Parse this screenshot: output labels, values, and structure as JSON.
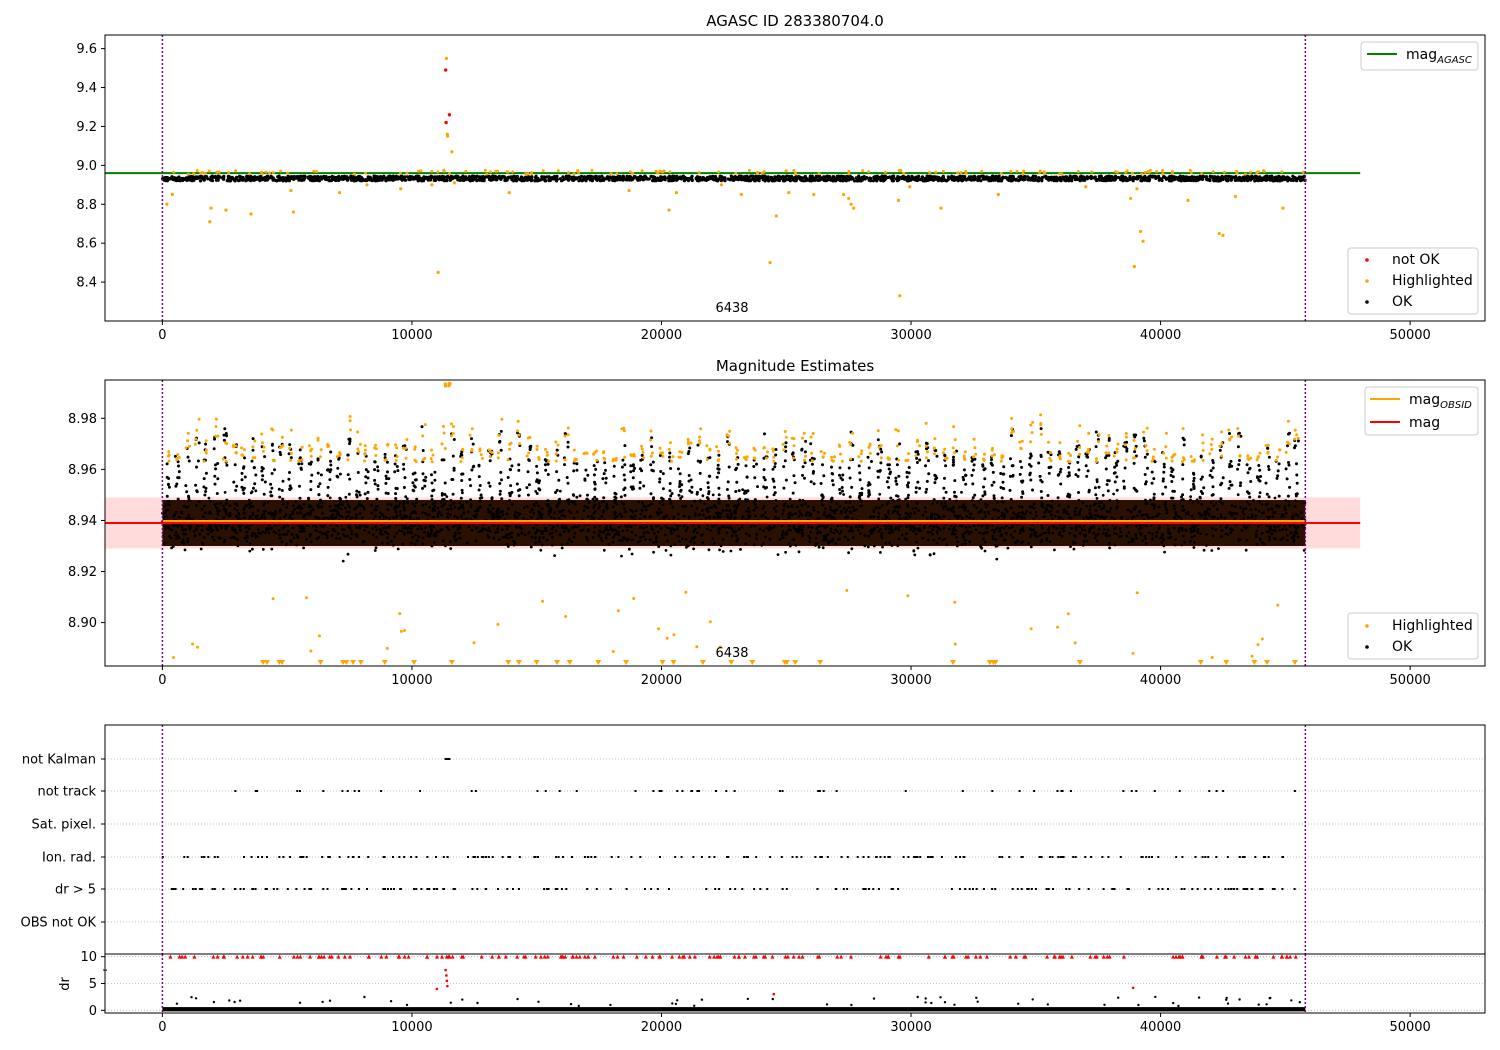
{
  "chart_data": [
    {
      "type": "scatter",
      "title": "AGASC ID 283380704.0",
      "xlim": [
        -2300,
        53000
      ],
      "ylim": [
        8.2,
        9.67
      ],
      "xticks": [
        "0",
        "10000",
        "20000",
        "30000",
        "40000",
        "50000"
      ],
      "yticks": [
        "8.4",
        "8.6",
        "8.8",
        "9.0",
        "9.2",
        "9.4",
        "9.6"
      ],
      "annotation": "6438",
      "vlines_x": [
        0,
        45800
      ],
      "hline": {
        "name": "mag",
        "name_sub": "AGASC",
        "y": 8.96,
        "color": "#008000"
      },
      "series": [
        {
          "name": "not OK",
          "color": "#ff0000",
          "points": [
            [
              11350,
              9.49
            ],
            [
              11370,
              9.22
            ],
            [
              11500,
              9.26
            ]
          ]
        },
        {
          "name": "Highlighted",
          "color": "#ffa500",
          "points": [
            [
              180,
              8.8
            ],
            [
              400,
              8.85
            ],
            [
              1900,
              8.71
            ],
            [
              1950,
              8.78
            ],
            [
              2550,
              8.77
            ],
            [
              3550,
              8.75
            ],
            [
              5250,
              8.76
            ],
            [
              5150,
              8.87
            ],
            [
              7100,
              8.86
            ],
            [
              8200,
              8.9
            ],
            [
              9550,
              8.88
            ],
            [
              10800,
              8.9
            ],
            [
              11050,
              8.45
            ],
            [
              11380,
              9.55
            ],
            [
              11420,
              9.16
            ],
            [
              11430,
              9.15
            ],
            [
              11600,
              9.07
            ],
            [
              11700,
              8.91
            ],
            [
              13900,
              8.86
            ],
            [
              18700,
              8.87
            ],
            [
              20300,
              8.77
            ],
            [
              20600,
              8.86
            ],
            [
              22400,
              8.9
            ],
            [
              23200,
              8.85
            ],
            [
              24350,
              8.5
            ],
            [
              24600,
              8.74
            ],
            [
              25100,
              8.86
            ],
            [
              26100,
              8.85
            ],
            [
              27300,
              8.85
            ],
            [
              27500,
              8.83
            ],
            [
              27600,
              8.8
            ],
            [
              27700,
              8.78
            ],
            [
              29500,
              8.82
            ],
            [
              29550,
              8.33
            ],
            [
              29950,
              8.89
            ],
            [
              31200,
              8.78
            ],
            [
              33500,
              8.85
            ],
            [
              37000,
              8.89
            ],
            [
              38800,
              8.83
            ],
            [
              38950,
              8.48
            ],
            [
              39050,
              8.88
            ],
            [
              39200,
              8.66
            ],
            [
              39300,
              8.61
            ],
            [
              41100,
              8.82
            ],
            [
              42350,
              8.65
            ],
            [
              42500,
              8.64
            ],
            [
              43000,
              8.84
            ],
            [
              44900,
              8.78
            ]
          ]
        },
        {
          "name": "OK",
          "color": "#000000",
          "band": [
            8.92,
            8.945
          ]
        }
      ],
      "legend": [
        "mag_AGASC",
        "not OK",
        "Highlighted",
        "OK"
      ]
    },
    {
      "type": "scatter",
      "title": "Magnitude Estimates",
      "xlim": [
        -2300,
        53000
      ],
      "ylim": [
        8.883,
        8.995
      ],
      "xticks": [
        "0",
        "10000",
        "20000",
        "30000",
        "40000",
        "50000"
      ],
      "yticks": [
        "8.90",
        "8.92",
        "8.94",
        "8.96",
        "8.98"
      ],
      "annotation": "6438",
      "vlines_x": [
        0,
        45800
      ],
      "lines": [
        {
          "name": "mag",
          "name_sub": "OBSID",
          "color": "#ffa500",
          "y": 8.939
        },
        {
          "name": "mag",
          "color": "#ff0000",
          "y": 8.939,
          "band": [
            8.929,
            8.949
          ]
        }
      ],
      "series": [
        {
          "name": "Highlighted",
          "color": "#ffa500",
          "peaks": "orange points above 8.965 at each observation spike, outliers below 8.915 and clipped at bottom"
        },
        {
          "name": "OK",
          "color": "#000000",
          "band": [
            8.918,
            8.964
          ]
        }
      ],
      "legend": [
        "mag_OBSID",
        "mag",
        "Highlighted",
        "OK"
      ]
    },
    {
      "type": "scatter",
      "title": "",
      "xlim": [
        -2300,
        53000
      ],
      "xticks": [
        "0",
        "10000",
        "20000",
        "30000",
        "40000",
        "50000"
      ],
      "category_rows": [
        "not Kalman",
        "not track",
        "Sat. pixel.",
        "Ion. rad.",
        "dr > 5",
        "OBS not OK"
      ],
      "dr_axis": {
        "ylabel": "dr",
        "yticks": [
          "0",
          "5",
          "10"
        ],
        "ylim": [
          -0.5,
          10.5
        ]
      },
      "vlines_x": [
        0,
        45800
      ]
    }
  ]
}
